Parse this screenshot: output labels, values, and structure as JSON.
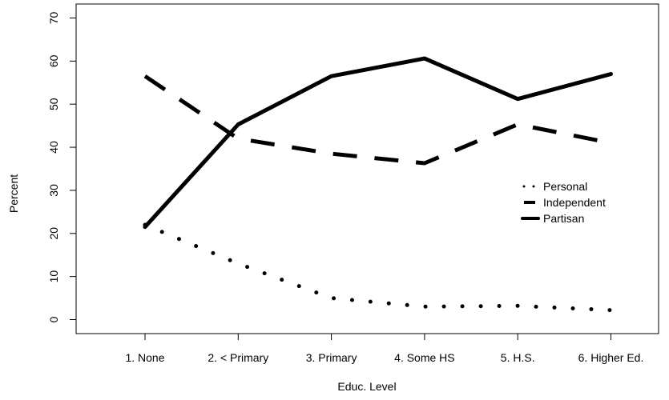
{
  "chart_data": {
    "type": "line",
    "title": "",
    "xlabel": "Educ. Level",
    "ylabel": "Percent",
    "categories": [
      "1. None",
      "2. < Primary",
      "3. Primary",
      "4. Some HS",
      "5. H.S.",
      "6. Higher Ed."
    ],
    "ylim": [
      0,
      70
    ],
    "yticks": [
      0,
      10,
      20,
      30,
      40,
      50,
      60,
      70
    ],
    "grid": false,
    "legend_position": "right",
    "series": [
      {
        "name": "Personal",
        "style": "dotted",
        "values": [
          22,
          13,
          5,
          3,
          3.2,
          2.2
        ]
      },
      {
        "name": "Independent",
        "style": "dashed",
        "values": [
          56.5,
          42,
          38.5,
          36.3,
          45.3,
          41
        ]
      },
      {
        "name": "Partisan",
        "style": "solid",
        "values": [
          21.5,
          45.3,
          56.5,
          60.6,
          51.2,
          57
        ]
      }
    ],
    "line_color": "#000000"
  }
}
